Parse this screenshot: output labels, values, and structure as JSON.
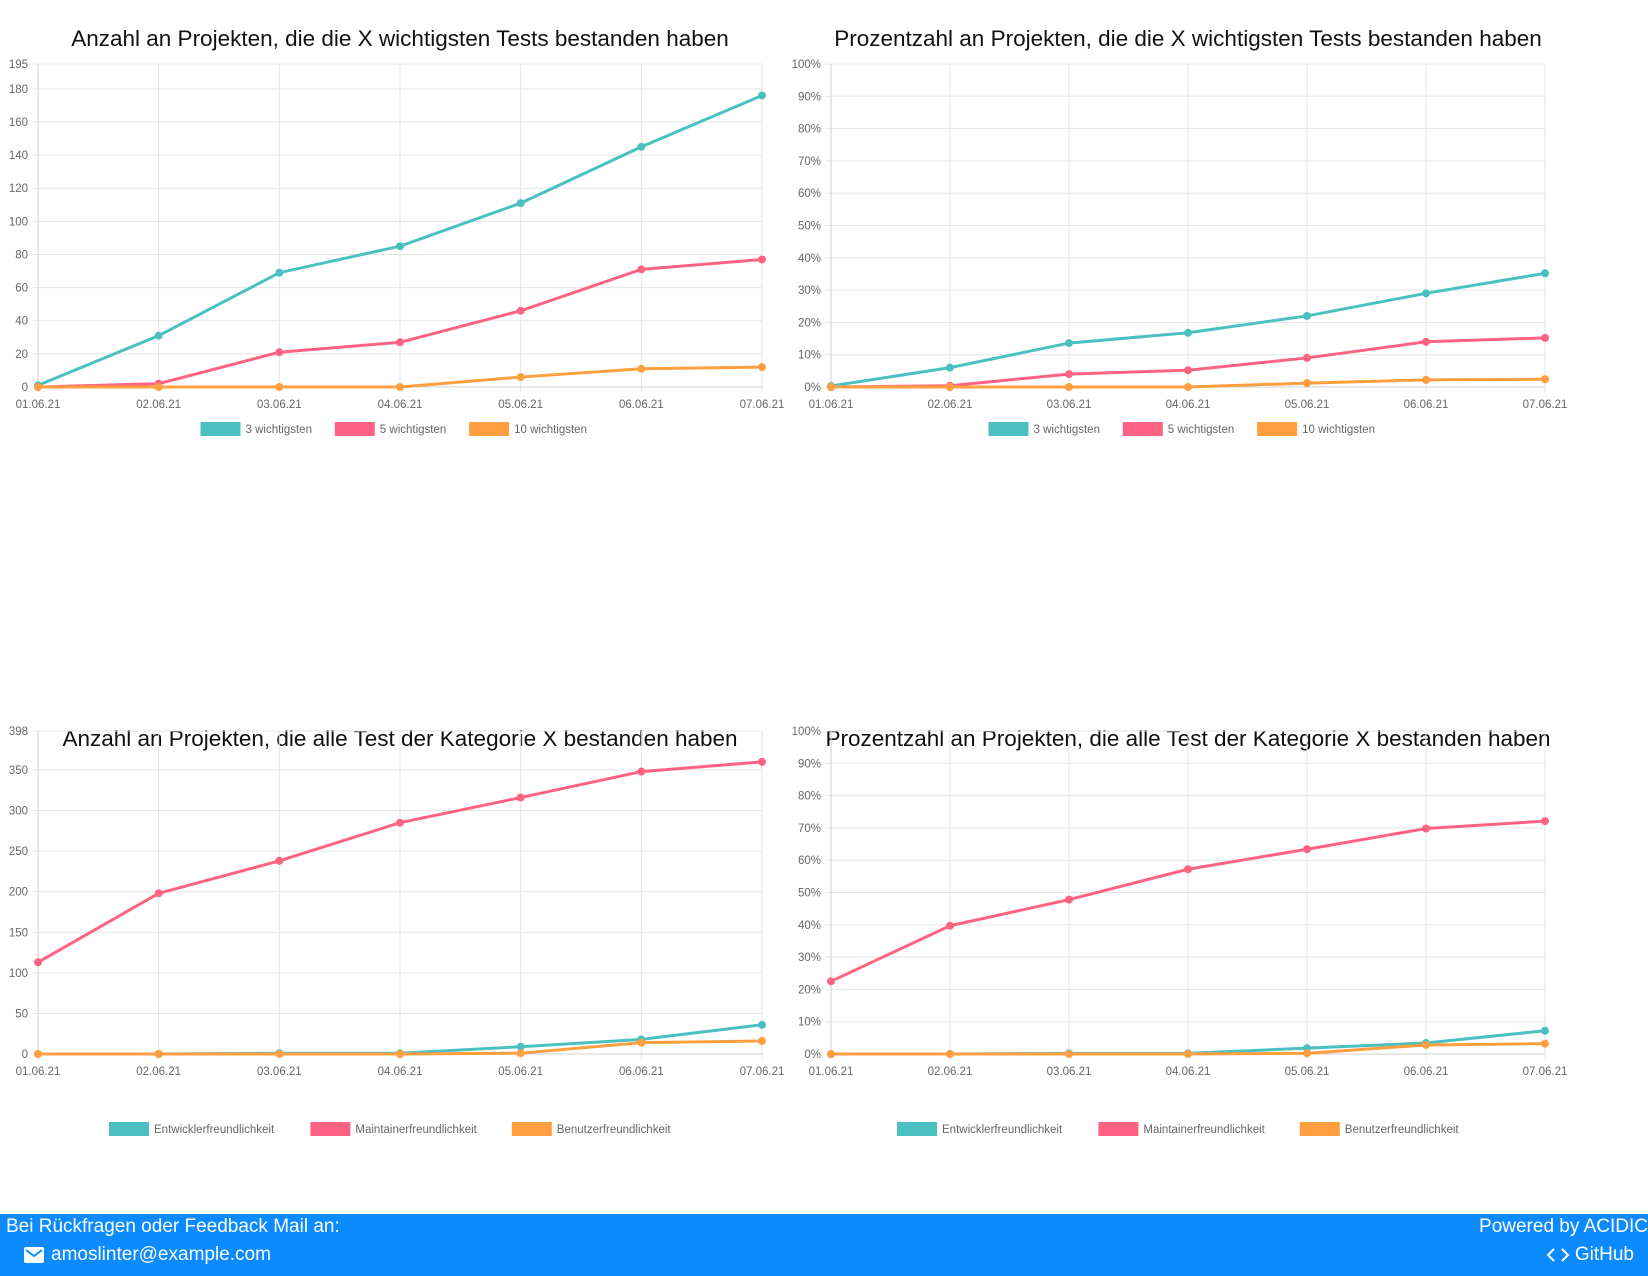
{
  "charts": [
    {
      "title": "Anzahl an Projekten, die die X wichtigsten Tests bestanden haben",
      "percent": false,
      "ymax": 195,
      "yticks": [
        0,
        20,
        40,
        60,
        80,
        100,
        120,
        140,
        160,
        180,
        195
      ],
      "categories": [
        "01.06.21",
        "02.06.21",
        "03.06.21",
        "04.06.21",
        "05.06.21",
        "06.06.21",
        "07.06.21"
      ],
      "series": [
        {
          "name": "3 wichtigsten",
          "color": "#4bc0c0",
          "values": [
            1,
            31,
            69,
            85,
            111,
            145,
            176
          ]
        },
        {
          "name": "5 wichtigsten",
          "color": "#ff6384",
          "values": [
            0,
            2,
            21,
            27,
            46,
            71,
            77
          ]
        },
        {
          "name": "10 wichtigsten",
          "color": "#ff9f40",
          "values": [
            0,
            0,
            0,
            0,
            6,
            11,
            12
          ]
        }
      ]
    },
    {
      "title": "Prozentzahl an Projekten, die die X wichtigsten Tests bestanden haben",
      "percent": true,
      "ymax": 100,
      "yticks": [
        0,
        10,
        20,
        30,
        40,
        50,
        60,
        70,
        80,
        90,
        100
      ],
      "categories": [
        "01.06.21",
        "02.06.21",
        "03.06.21",
        "04.06.21",
        "05.06.21",
        "06.06.21",
        "07.06.21"
      ],
      "series": [
        {
          "name": "3 wichtigsten",
          "color": "#4bc0c0",
          "values": [
            0.3,
            6,
            13.6,
            16.8,
            22,
            29,
            35.2
          ]
        },
        {
          "name": "5 wichtigsten",
          "color": "#ff6384",
          "values": [
            0,
            0.4,
            4,
            5.2,
            9,
            14,
            15.2
          ]
        },
        {
          "name": "10 wichtigsten",
          "color": "#ff9f40",
          "values": [
            0,
            0,
            0,
            0,
            1.2,
            2.2,
            2.4
          ]
        }
      ]
    },
    {
      "title": "Anzahl an Projekten, die alle Test der Kategorie X bestanden haben",
      "percent": false,
      "ymax": 398,
      "yticks": [
        0,
        50,
        100,
        150,
        200,
        250,
        300,
        350,
        398
      ],
      "categories": [
        "01.06.21",
        "02.06.21",
        "03.06.21",
        "04.06.21",
        "05.06.21",
        "06.06.21",
        "07.06.21"
      ],
      "series": [
        {
          "name": "Entwicklerfreundlichkeit",
          "color": "#4bc0c0",
          "values": [
            0,
            0,
            1,
            1,
            9,
            18,
            36
          ]
        },
        {
          "name": "Maintainerfreundlichkeit",
          "color": "#ff6384",
          "values": [
            113,
            198,
            238,
            285,
            316,
            348,
            360
          ]
        },
        {
          "name": "Benutzerfreundlichkeit",
          "color": "#ff9f40",
          "values": [
            0,
            0,
            0,
            0,
            1,
            14,
            16
          ]
        }
      ]
    },
    {
      "title": "Prozentzahl an Projekten, die alle Test der Kategorie X bestanden haben",
      "percent": true,
      "ymax": 100,
      "yticks": [
        0,
        10,
        20,
        30,
        40,
        50,
        60,
        70,
        80,
        90,
        100
      ],
      "categories": [
        "01.06.21",
        "02.06.21",
        "03.06.21",
        "04.06.21",
        "05.06.21",
        "06.06.21",
        "07.06.21"
      ],
      "series": [
        {
          "name": "Entwicklerfreundlichkeit",
          "color": "#4bc0c0",
          "values": [
            0,
            0,
            0.2,
            0.2,
            1.8,
            3.4,
            7.2
          ]
        },
        {
          "name": "Maintainerfreundlichkeit",
          "color": "#ff6384",
          "values": [
            22.5,
            39.7,
            47.8,
            57.2,
            63.4,
            69.8,
            72.1
          ]
        },
        {
          "name": "Benutzerfreundlichkeit",
          "color": "#ff9f40",
          "values": [
            0,
            0,
            0,
            0,
            0.2,
            2.8,
            3.2
          ]
        }
      ]
    }
  ],
  "chart_data": [
    {
      "type": "line",
      "title": "Anzahl an Projekten, die die X wichtigsten Tests bestanden haben",
      "x": [
        "01.06.21",
        "02.06.21",
        "03.06.21",
        "04.06.21",
        "05.06.21",
        "06.06.21",
        "07.06.21"
      ],
      "ylim": [
        0,
        195
      ],
      "grid": true,
      "legend": "bottom",
      "series": [
        {
          "name": "3 wichtigsten",
          "values": [
            1,
            31,
            69,
            85,
            111,
            145,
            176
          ]
        },
        {
          "name": "5 wichtigsten",
          "values": [
            0,
            2,
            21,
            27,
            46,
            71,
            77
          ]
        },
        {
          "name": "10 wichtigsten",
          "values": [
            0,
            0,
            0,
            0,
            6,
            11,
            12
          ]
        }
      ]
    },
    {
      "type": "line",
      "title": "Prozentzahl an Projekten, die die X wichtigsten Tests bestanden haben",
      "x": [
        "01.06.21",
        "02.06.21",
        "03.06.21",
        "04.06.21",
        "05.06.21",
        "06.06.21",
        "07.06.21"
      ],
      "ylim": [
        0,
        100
      ],
      "grid": true,
      "legend": "bottom",
      "series": [
        {
          "name": "3 wichtigsten",
          "values": [
            0.3,
            6,
            13.6,
            16.8,
            22,
            29,
            35.2
          ]
        },
        {
          "name": "5 wichtigsten",
          "values": [
            0,
            0.4,
            4,
            5.2,
            9,
            14,
            15.2
          ]
        },
        {
          "name": "10 wichtigsten",
          "values": [
            0,
            0,
            0,
            0,
            1.2,
            2.2,
            2.4
          ]
        }
      ]
    },
    {
      "type": "line",
      "title": "Anzahl an Projekten, die alle Test der Kategorie X bestanden haben",
      "x": [
        "01.06.21",
        "02.06.21",
        "03.06.21",
        "04.06.21",
        "05.06.21",
        "06.06.21",
        "07.06.21"
      ],
      "ylim": [
        0,
        398
      ],
      "grid": true,
      "legend": "bottom",
      "series": [
        {
          "name": "Entwicklerfreundlichkeit",
          "values": [
            0,
            0,
            1,
            1,
            9,
            18,
            36
          ]
        },
        {
          "name": "Maintainerfreundlichkeit",
          "values": [
            113,
            198,
            238,
            285,
            316,
            348,
            360
          ]
        },
        {
          "name": "Benutzerfreundlichkeit",
          "values": [
            0,
            0,
            0,
            0,
            1,
            14,
            16
          ]
        }
      ]
    },
    {
      "type": "line",
      "title": "Prozentzahl an Projekten, die alle Test der Kategorie X bestanden haben",
      "x": [
        "01.06.21",
        "02.06.21",
        "03.06.21",
        "04.06.21",
        "05.06.21",
        "06.06.21",
        "07.06.21"
      ],
      "ylim": [
        0,
        100
      ],
      "grid": true,
      "legend": "bottom",
      "series": [
        {
          "name": "Entwicklerfreundlichkeit",
          "values": [
            0,
            0,
            0.2,
            0.2,
            1.8,
            3.4,
            7.2
          ]
        },
        {
          "name": "Maintainerfreundlichkeit",
          "values": [
            22.5,
            39.7,
            47.8,
            57.2,
            63.4,
            69.8,
            72.1
          ]
        },
        {
          "name": "Benutzerfreundlichkeit",
          "values": [
            0,
            0,
            0,
            0,
            0.2,
            2.8,
            3.2
          ]
        }
      ]
    }
  ],
  "footer": {
    "feedback_text": "Bei Rückfragen oder Feedback Mail an:",
    "email": "amoslinter@example.com",
    "email_icon": "mail-icon",
    "powered_by": "Powered by ACIDIC",
    "github_label": "GitHub",
    "github_icon": "code-icon",
    "background": "#0b8bff"
  }
}
